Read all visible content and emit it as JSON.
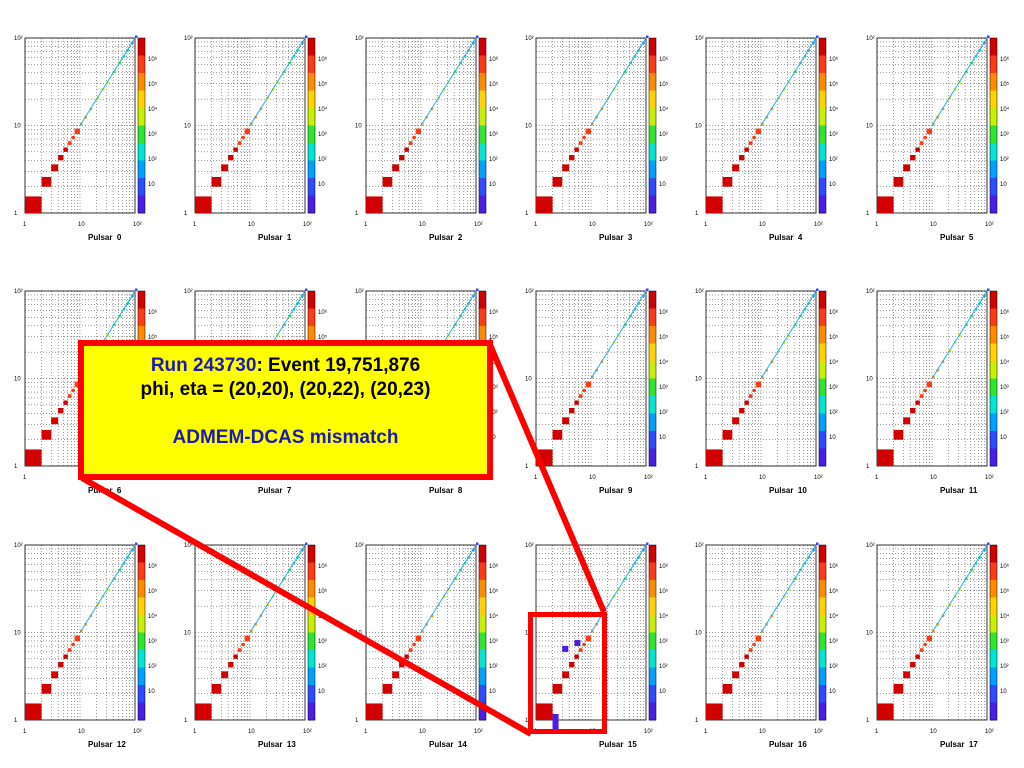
{
  "annotation": {
    "run_label": "Run 243730",
    "event_text": ": Event 19,751,876",
    "coords_text": "phi, eta = (20,20), (20,22), (20,23)",
    "mismatch_text": "ADMEM-DCAS mismatch",
    "highlight_panel": "Pulsar 15",
    "colors": {
      "frame": "#ff0000",
      "fill": "#ffff00",
      "accent_text": "#1a1ab4"
    }
  },
  "chart_data": {
    "type": "heatmap",
    "title_prefix": "Pulsar",
    "panels": [
      "0",
      "1",
      "2",
      "3",
      "4",
      "5",
      "6",
      "7",
      "8",
      "9",
      "10",
      "11",
      "12",
      "13",
      "14",
      "15",
      "16",
      "17"
    ],
    "x_axis": {
      "scale": "log",
      "range": [
        1,
        100
      ],
      "tick_labels": [
        "1",
        "10",
        "10²"
      ]
    },
    "y_axis": {
      "scale": "log",
      "range": [
        1,
        100
      ],
      "tick_labels": [
        "1",
        "10",
        "10²"
      ]
    },
    "z_axis": {
      "scale": "log",
      "range": [
        1,
        10000000
      ],
      "tick_labels": [
        "10",
        "10²",
        "10³",
        "10⁴",
        "10⁵",
        "10⁶"
      ]
    },
    "grid": true,
    "colormap": [
      "#4b1ee6",
      "#2f4bff",
      "#00a0ff",
      "#00e6d2",
      "#2ee62e",
      "#c8f000",
      "#ffd200",
      "#ff8c00",
      "#ff3a14",
      "#d20000"
    ],
    "diagonal": {
      "description": "counts concentrated on x = y",
      "points": [
        {
          "xy": 1,
          "log_counts": 7.0
        },
        {
          "xy": 2,
          "log_counts": 6.8
        },
        {
          "xy": 3,
          "log_counts": 6.6
        },
        {
          "xy": 4,
          "log_counts": 6.4
        },
        {
          "xy": 5,
          "log_counts": 6.3
        },
        {
          "xy": 6,
          "log_counts": 6.2
        },
        {
          "xy": 7,
          "log_counts": 6.0
        },
        {
          "xy": 8,
          "log_counts": 5.8
        },
        {
          "xy": 10,
          "log_counts": 5.5
        },
        {
          "xy": 12,
          "log_counts": 5.2
        },
        {
          "xy": 15,
          "log_counts": 4.9
        },
        {
          "xy": 20,
          "log_counts": 4.5
        },
        {
          "xy": 25,
          "log_counts": 4.1
        },
        {
          "xy": 30,
          "log_counts": 3.8
        },
        {
          "xy": 40,
          "log_counts": 3.4
        },
        {
          "xy": 50,
          "log_counts": 3.0
        },
        {
          "xy": 60,
          "log_counts": 2.6
        },
        {
          "xy": 70,
          "log_counts": 2.2
        },
        {
          "xy": 85,
          "log_counts": 1.8
        },
        {
          "xy": 100,
          "log_counts": 1.4
        }
      ]
    },
    "anomalies": {
      "panel": "15",
      "cells": [
        {
          "x": 2,
          "y": 1,
          "log_counts": 0.2
        },
        {
          "x": 3,
          "y": 6,
          "log_counts": 0.3
        },
        {
          "x": 5,
          "y": 7,
          "log_counts": 0.3
        }
      ]
    }
  }
}
